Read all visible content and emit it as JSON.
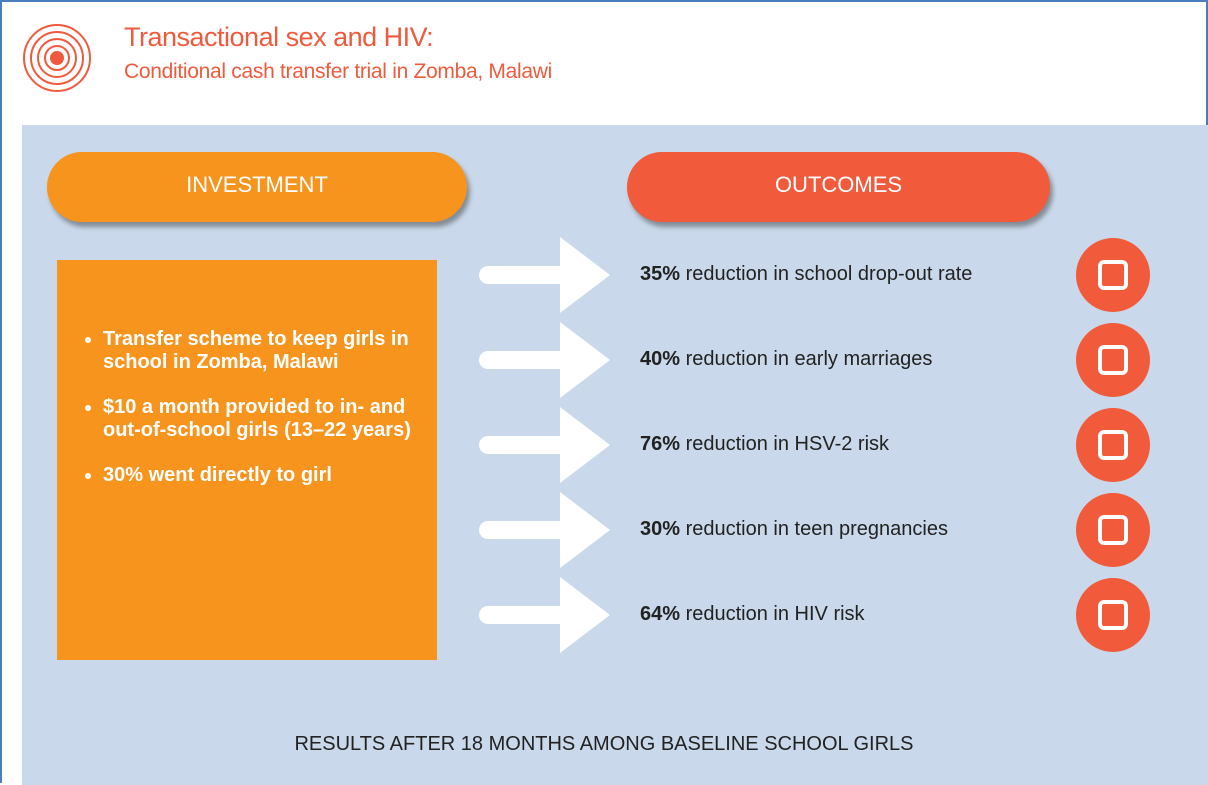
{
  "header": {
    "title": "Transactional sex and HIV:",
    "subtitle": "Conditional cash transfer trial in Zomba, Malawi"
  },
  "investment": {
    "label": "INVESTMENT",
    "bullets": [
      "Transfer scheme to keep girls in school in Zomba, Malawi",
      "$10 a month provided to in- and out-of-school girls (13–22 years)",
      "30% went directly to girl"
    ]
  },
  "outcomes": {
    "label": "OUTCOMES",
    "items": [
      {
        "figure": "35%",
        "text": " reduction in school drop-out rate"
      },
      {
        "figure": "40%",
        "text": " reduction in early marriages"
      },
      {
        "figure": "76%",
        "text": " reduction in HSV-2 risk"
      },
      {
        "figure": "30%",
        "text": " reduction in teen pregnancies"
      },
      {
        "figure": "64%",
        "text": " reduction in HIV risk"
      }
    ]
  },
  "footer": "RESULTS AFTER 18 MONTHS AMONG BASELINE SCHOOL GIRLS"
}
